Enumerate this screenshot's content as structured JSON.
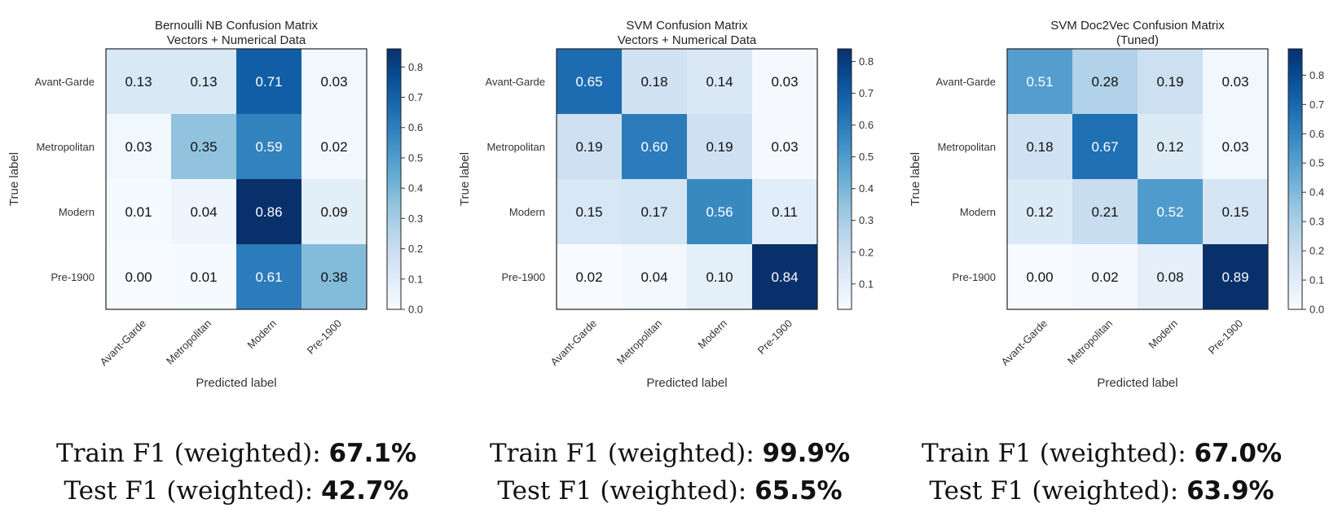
{
  "chart_data": [
    {
      "type": "heatmap",
      "title": "Bernoulli NB Confusion Matrix",
      "subtitle": "Vectors + Numerical Data",
      "xlabel": "Predicted label",
      "ylabel": "True label",
      "categories": [
        "Avant-Garde",
        "Metropolitan",
        "Modern",
        "Pre-1900"
      ],
      "values": [
        [
          0.13,
          0.13,
          0.71,
          0.03
        ],
        [
          0.03,
          0.35,
          0.59,
          0.02
        ],
        [
          0.01,
          0.04,
          0.86,
          0.09
        ],
        [
          0.0,
          0.01,
          0.61,
          0.38
        ]
      ],
      "colorbar": {
        "min": 0,
        "max": 0.86,
        "ticks": [
          "0.0",
          "0.1",
          "0.2",
          "0.3",
          "0.4",
          "0.5",
          "0.6",
          "0.7",
          "0.8"
        ]
      },
      "colormap": "Blues"
    },
    {
      "type": "heatmap",
      "title": "SVM Confusion Matrix",
      "subtitle": "Vectors + Numerical Data",
      "xlabel": "Predicted label",
      "ylabel": "True label",
      "categories": [
        "Avant-Garde",
        "Metropolitan",
        "Modern",
        "Pre-1900"
      ],
      "values": [
        [
          0.65,
          0.18,
          0.14,
          0.03
        ],
        [
          0.19,
          0.6,
          0.19,
          0.03
        ],
        [
          0.15,
          0.17,
          0.56,
          0.11
        ],
        [
          0.02,
          0.04,
          0.1,
          0.84
        ]
      ],
      "colorbar": {
        "min": 0.02,
        "max": 0.84,
        "ticks": [
          "0.1",
          "0.2",
          "0.3",
          "0.4",
          "0.5",
          "0.6",
          "0.7",
          "0.8"
        ]
      },
      "colormap": "Blues"
    },
    {
      "type": "heatmap",
      "title": "SVM Doc2Vec Confusion Matrix",
      "subtitle": "(Tuned)",
      "xlabel": "Predicted label",
      "ylabel": "True label",
      "categories": [
        "Avant-Garde",
        "Metropolitan",
        "Modern",
        "Pre-1900"
      ],
      "values": [
        [
          0.51,
          0.28,
          0.19,
          0.03
        ],
        [
          0.18,
          0.67,
          0.12,
          0.03
        ],
        [
          0.12,
          0.21,
          0.52,
          0.15
        ],
        [
          0.0,
          0.02,
          0.08,
          0.89
        ]
      ],
      "colorbar": {
        "min": 0,
        "max": 0.89,
        "ticks": [
          "0.0",
          "0.1",
          "0.2",
          "0.3",
          "0.4",
          "0.5",
          "0.6",
          "0.7",
          "0.8"
        ]
      },
      "colormap": "Blues"
    }
  ],
  "captions": [
    {
      "train_label": "Train F1 (weighted): ",
      "train_value": "67.1%",
      "test_label": "Test F1 (weighted): ",
      "test_value": "42.7%"
    },
    {
      "train_label": "Train F1 (weighted): ",
      "train_value": "99.9%",
      "test_label": "Test F1 (weighted): ",
      "test_value": "65.5%"
    },
    {
      "train_label": "Train F1 (weighted): ",
      "train_value": "67.0%",
      "test_label": "Test F1 (weighted): ",
      "test_value": "63.9%"
    }
  ]
}
